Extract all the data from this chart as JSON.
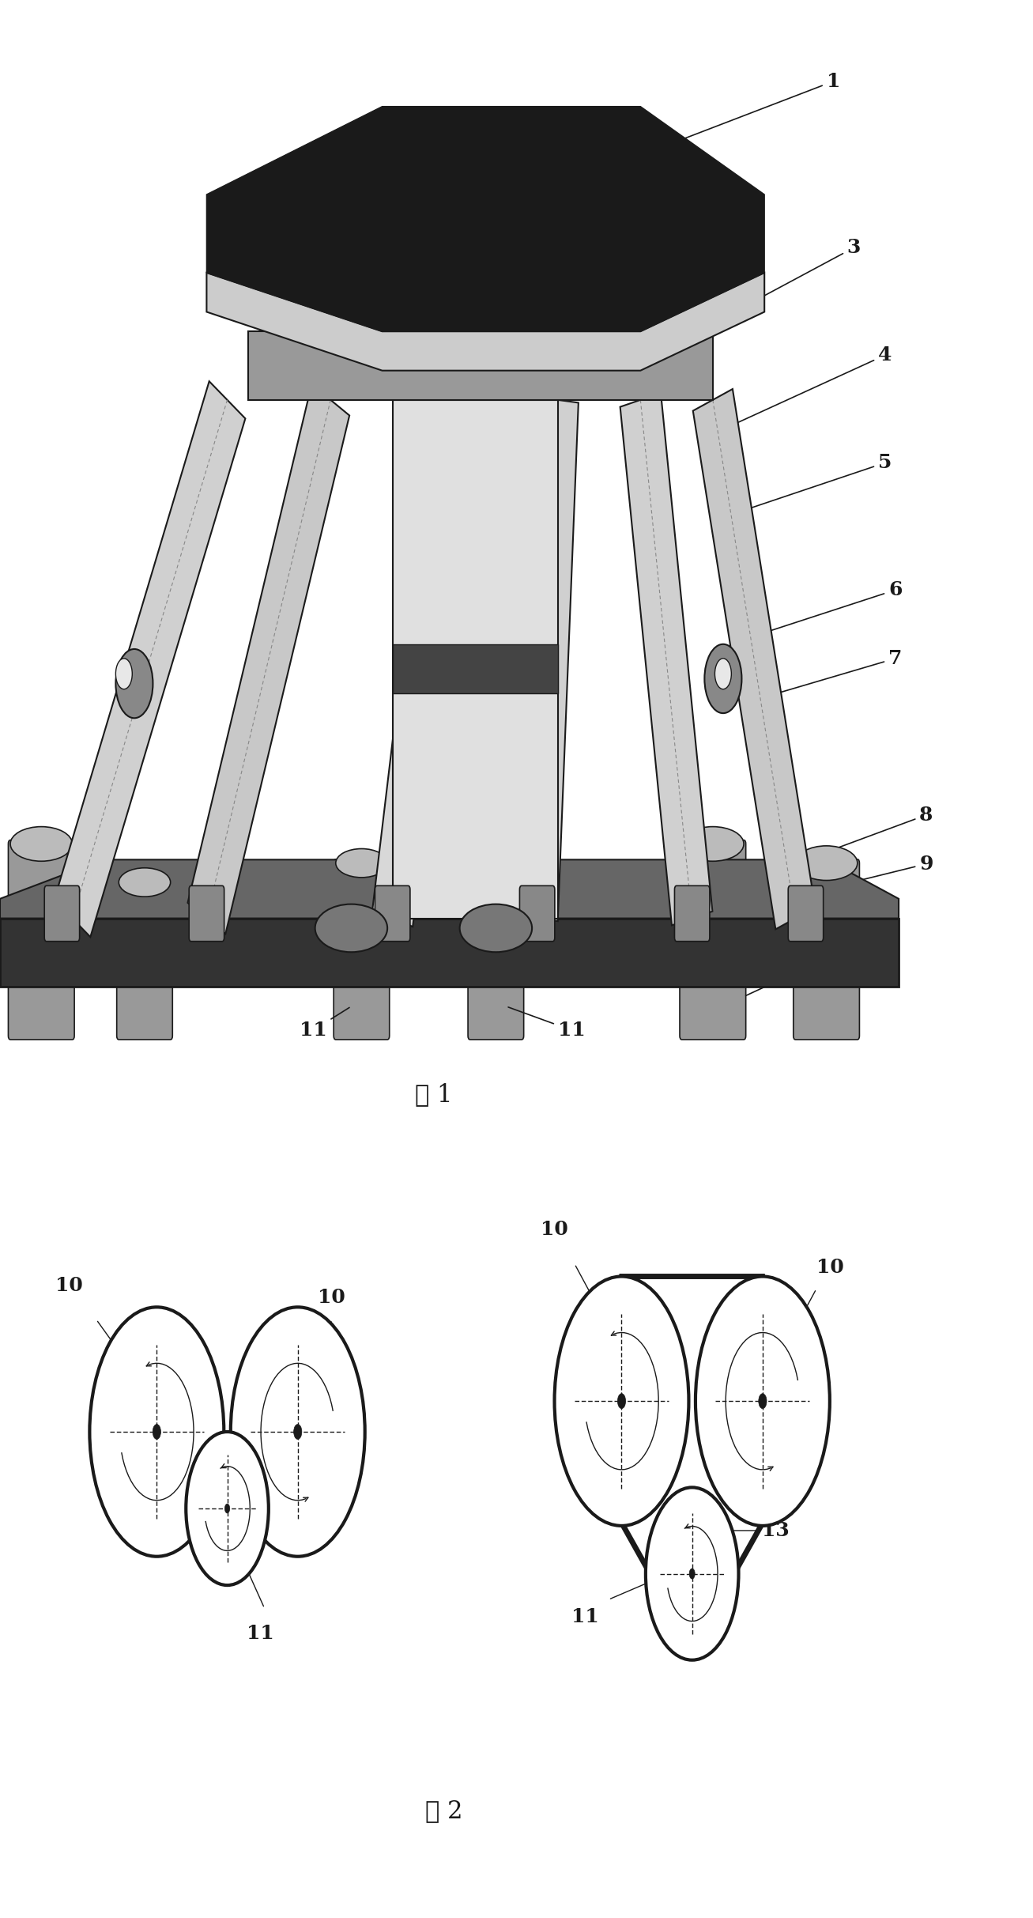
{
  "fig_width": 13.07,
  "fig_height": 24.26,
  "bg_color": "#ffffff",
  "fig1_title": "图 1",
  "fig2_title": "图 2",
  "label_color": "#000000",
  "line_color": "#000000",
  "annotation_fontsize": 22,
  "caption_fontsize": 22,
  "robot_color_dark": "#1a1a1a",
  "robot_color_mid": "#555555",
  "robot_color_light": "#aaaaaa",
  "robot_color_white": "#e8e8e8"
}
